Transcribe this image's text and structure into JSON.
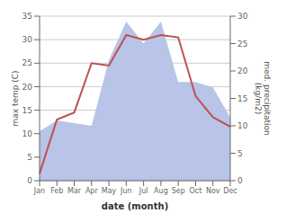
{
  "chart_data": {
    "type": "line",
    "xlabel": "date (month)",
    "ylabel": "max temp (C)",
    "y2label": "med. precipitation\n(kg/m2)",
    "categories": [
      "Jan",
      "Feb",
      "Mar",
      "Apr",
      "May",
      "Jun",
      "Jul",
      "Aug",
      "Sep",
      "Oct",
      "Nov",
      "Dec"
    ],
    "series": [
      {
        "type": "area",
        "axis": "y2",
        "color": "#b8c4e8",
        "values": [
          9.0,
          11.0,
          10.5,
          10.0,
          22.0,
          29.0,
          25.0,
          29.0,
          18.0,
          18.0,
          17.0,
          11.5
        ]
      },
      {
        "type": "line",
        "color": "#c0504d",
        "values": [
          1.5,
          13.0,
          14.5,
          25.0,
          24.5,
          31.0,
          30.0,
          31.0,
          30.5,
          18.0,
          13.5,
          11.5
        ]
      }
    ],
    "ylim": [
      0,
      35
    ],
    "yticks": [
      0,
      5,
      10,
      15,
      20,
      25,
      30,
      35
    ],
    "y2lim": [
      0,
      30
    ],
    "y2ticks": [
      0,
      5,
      10,
      15,
      20,
      25,
      30
    ],
    "grid": true
  }
}
